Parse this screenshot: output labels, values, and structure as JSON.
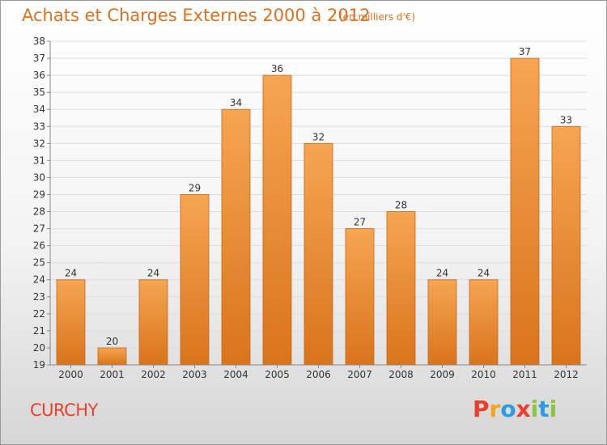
{
  "header": {
    "title": "Achats et Charges Externes 2000 à 2012",
    "unit": "(en milliers d'€)"
  },
  "footer": {
    "commune": "CURCHY",
    "logo_letters": [
      "P",
      "r",
      "o",
      "x",
      "i",
      "t",
      "i"
    ],
    "logo_colors": [
      "#e8402a",
      "#f7a21b",
      "#2e9be0",
      "#e8402a",
      "#8cc63f",
      "#2e9be0",
      "#8cc63f"
    ]
  },
  "colors": {
    "bar_light": "#f6a552",
    "bar_dark": "#d9741c",
    "bar_edge": "#c9661a",
    "grid": "#dddddd",
    "axis": "#888888"
  },
  "chart_data": {
    "type": "bar",
    "title": "Achats et Charges Externes 2000 à 2012",
    "categories": [
      "2000",
      "2001",
      "2002",
      "2003",
      "2004",
      "2005",
      "2006",
      "2007",
      "2008",
      "2009",
      "2010",
      "2011",
      "2012"
    ],
    "values": [
      24,
      20,
      24,
      29,
      34,
      36,
      32,
      27,
      28,
      24,
      24,
      37,
      33
    ],
    "ylim": [
      19,
      38
    ],
    "yticks": [
      19,
      20,
      21,
      22,
      23,
      24,
      25,
      26,
      27,
      28,
      29,
      30,
      31,
      32,
      33,
      34,
      35,
      36,
      37,
      38
    ],
    "grid": true,
    "data_labels": true
  }
}
